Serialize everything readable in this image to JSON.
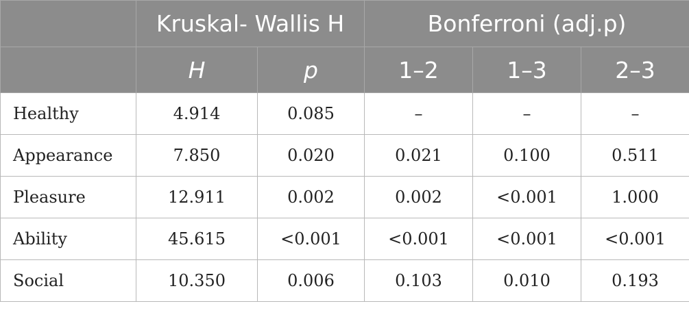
{
  "header": {
    "group_kw": "Kruskal- Wallis H",
    "group_bf": "Bonferroni (adj.p)",
    "sub": [
      "H",
      "p",
      "1–2",
      "1–3",
      "2–3"
    ]
  },
  "rows": [
    {
      "label": "Healthy",
      "cells": [
        "4.914",
        "0.085",
        "–",
        "–",
        "–"
      ]
    },
    {
      "label": "Appearance",
      "cells": [
        "7.850",
        "0.020",
        "0.021",
        "0.100",
        "0.511"
      ]
    },
    {
      "label": "Pleasure",
      "cells": [
        "12.911",
        "0.002",
        "0.002",
        "<0.001",
        "1.000"
      ]
    },
    {
      "label": "Ability",
      "cells": [
        "45.615",
        "<0.001",
        "<0.001",
        "<0.001",
        "<0.001"
      ]
    },
    {
      "label": "Social",
      "cells": [
        "10.350",
        "0.006",
        "0.103",
        "0.010",
        "0.193"
      ]
    }
  ]
}
